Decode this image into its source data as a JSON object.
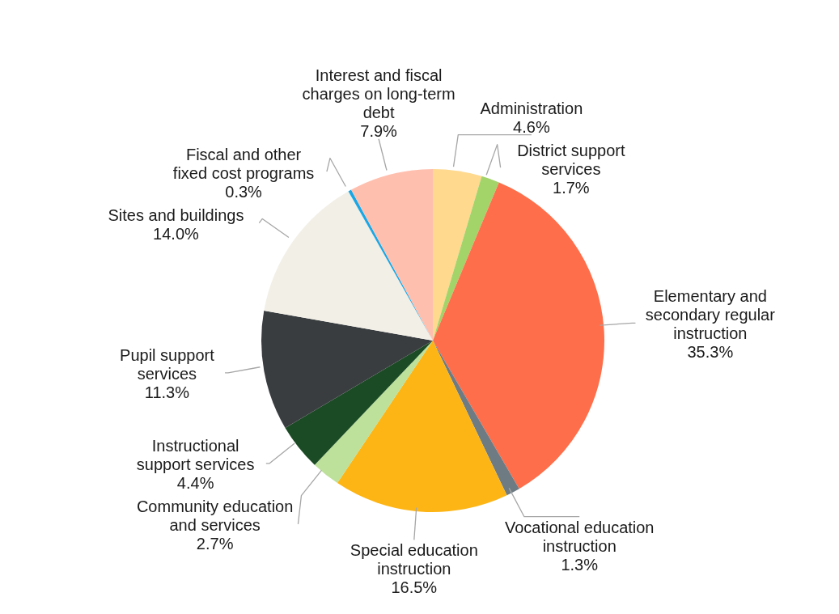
{
  "chart_data": {
    "type": "pie",
    "categories": [
      "Administration",
      "District support services",
      "Elementary and secondary regular instruction",
      "Vocational education instruction",
      "Special education instruction",
      "Community education and services",
      "Instructional support services",
      "Pupil support services",
      "Sites and buildings",
      "Fiscal and other fixed cost programs",
      "Interest and fiscal charges on long-term debt"
    ],
    "values": [
      4.6,
      1.7,
      35.3,
      1.3,
      16.5,
      2.7,
      4.4,
      11.3,
      14.0,
      0.3,
      7.9
    ],
    "value_labels": [
      "4.6%",
      "1.7%",
      "35.3%",
      "1.3%",
      "16.5%",
      "2.7%",
      "4.4%",
      "11.3%",
      "14.0%",
      "0.3%",
      "7.9%"
    ],
    "colors": [
      "#ffd98e",
      "#a3d46a",
      "#ff6e4a",
      "#6e7b82",
      "#fdb515",
      "#bde09a",
      "#1b4b24",
      "#393d40",
      "#f2efe6",
      "#1aa7e6",
      "#ffbfae"
    ],
    "legend": false
  }
}
